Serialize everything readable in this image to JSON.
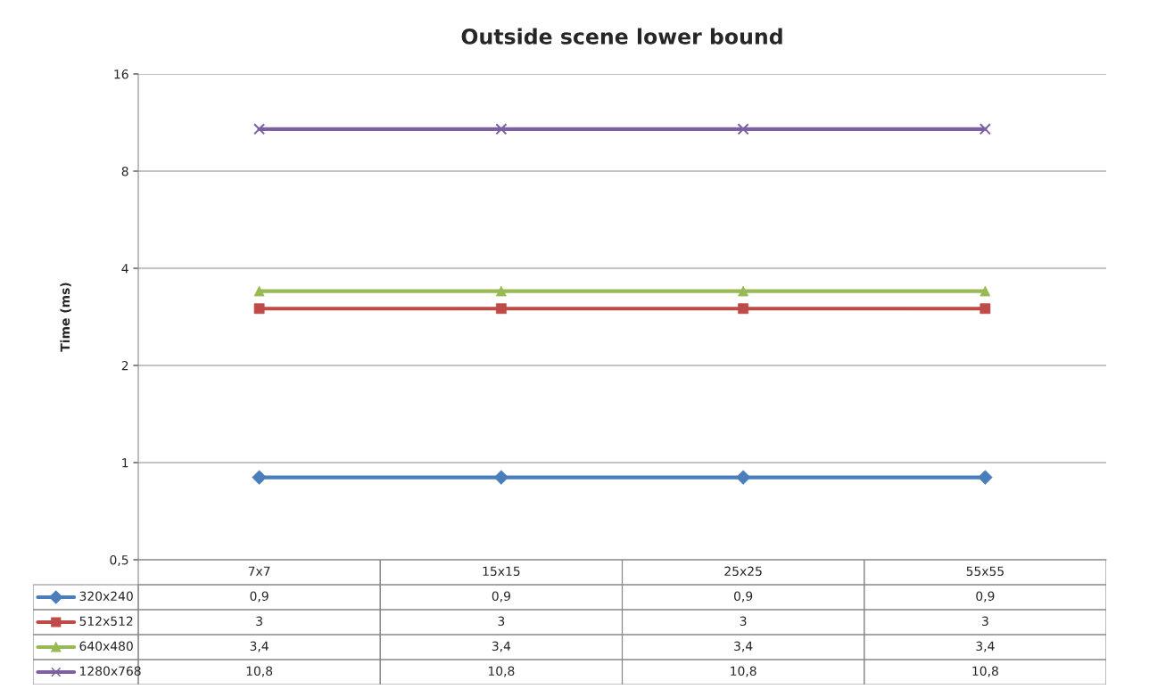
{
  "chart_data": {
    "type": "line",
    "title": "Outside scene lower bound",
    "ylabel": "Time (ms)",
    "categories": [
      "7x7",
      "15x15",
      "25x25",
      "55x55"
    ],
    "series": [
      {
        "name": "320x240",
        "color": "#4a7ebb",
        "marker": "diamond",
        "values": [
          0.9,
          0.9,
          0.9,
          0.9
        ],
        "value_labels": [
          "0,9",
          "0,9",
          "0,9",
          "0,9"
        ]
      },
      {
        "name": "512x512",
        "color": "#be4b48",
        "marker": "square",
        "values": [
          3,
          3,
          3,
          3
        ],
        "value_labels": [
          "3",
          "3",
          "3",
          "3"
        ]
      },
      {
        "name": "640x480",
        "color": "#98b954",
        "marker": "triangle",
        "values": [
          3.4,
          3.4,
          3.4,
          3.4
        ],
        "value_labels": [
          "3,4",
          "3,4",
          "3,4",
          "3,4"
        ]
      },
      {
        "name": "1280x768",
        "color": "#7d60a0",
        "marker": "cross",
        "values": [
          10.8,
          10.8,
          10.8,
          10.8
        ],
        "value_labels": [
          "10,8",
          "10,8",
          "10,8",
          "10,8"
        ]
      }
    ],
    "log": "y",
    "ylim": [
      0.5,
      16
    ],
    "yticks": [
      {
        "value": 0.5,
        "label": "0,5"
      },
      1,
      2,
      4,
      8,
      16
    ],
    "grid": "y",
    "legend": "bottom",
    "line_style": "solid"
  }
}
